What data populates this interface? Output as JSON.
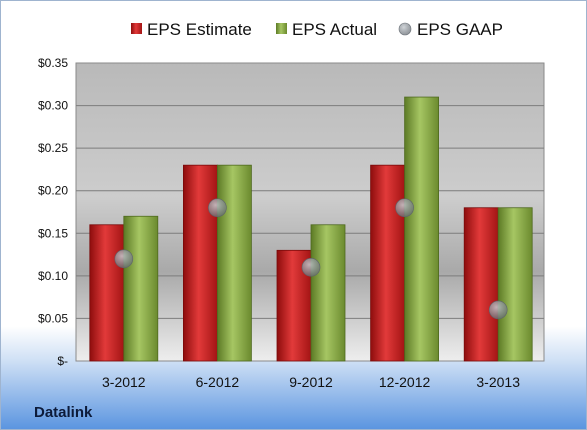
{
  "company": "Datalink",
  "chart_data": {
    "type": "bar",
    "categories": [
      "3-2012",
      "6-2012",
      "9-2012",
      "12-2012",
      "3-2013"
    ],
    "series": [
      {
        "name": "EPS Estimate",
        "kind": "bar",
        "color": "#d01e1e",
        "values": [
          0.16,
          0.23,
          0.13,
          0.23,
          0.18
        ]
      },
      {
        "name": "EPS Actual",
        "kind": "bar",
        "color": "#8fb046",
        "values": [
          0.17,
          0.23,
          0.16,
          0.31,
          0.18
        ]
      },
      {
        "name": "EPS GAAP",
        "kind": "scatter",
        "color": "#9aa3ad",
        "values": [
          0.12,
          0.18,
          0.11,
          0.18,
          0.06
        ]
      }
    ],
    "yticks": [
      0,
      0.05,
      0.1,
      0.15,
      0.2,
      0.25,
      0.3,
      0.35
    ],
    "ytick_labels": [
      "$-",
      "$0.05",
      "$0.10",
      "$0.15",
      "$0.20",
      "$0.25",
      "$0.30",
      "$0.35"
    ],
    "ylim": [
      0,
      0.35
    ],
    "grid": true,
    "legend": "top"
  }
}
